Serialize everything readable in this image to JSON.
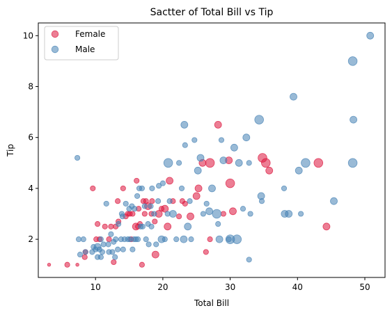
{
  "chart_data": {
    "type": "scatter",
    "title": "Sactter of Total Bill vs Tip",
    "xlabel": "Total Bill",
    "ylabel": "Tip",
    "xlim": [
      1.5,
      53
    ],
    "ylim": [
      0.5,
      10.5
    ],
    "xticks": [
      10,
      20,
      30,
      40,
      50
    ],
    "yticks": [
      2,
      4,
      6,
      8,
      10
    ],
    "grid": false,
    "legend": "top-left",
    "size_encoding": "party size",
    "series": [
      {
        "name": "Female",
        "color": "#dc143c",
        "points": [
          [
            3.1,
            1.0,
            1
          ],
          [
            5.8,
            1.0,
            2
          ],
          [
            7.3,
            1.0,
            1
          ],
          [
            8.4,
            1.3,
            2
          ],
          [
            8.5,
            1.5,
            2
          ],
          [
            9.6,
            4.0,
            2
          ],
          [
            10.1,
            2.0,
            2
          ],
          [
            10.3,
            2.6,
            2
          ],
          [
            10.6,
            2.0,
            2
          ],
          [
            11.4,
            2.5,
            2
          ],
          [
            12.0,
            2.0,
            2
          ],
          [
            12.3,
            2.5,
            2
          ],
          [
            12.7,
            1.1,
            2
          ],
          [
            13.0,
            2.5,
            2
          ],
          [
            13.3,
            3.5,
            2
          ],
          [
            13.4,
            2.7,
            2
          ],
          [
            14.1,
            4.0,
            2
          ],
          [
            14.5,
            2.9,
            2
          ],
          [
            14.8,
            3.0,
            2
          ],
          [
            15.1,
            3.0,
            2
          ],
          [
            15.3,
            2.0,
            2
          ],
          [
            15.5,
            3.0,
            2
          ],
          [
            16.0,
            2.5,
            3
          ],
          [
            16.1,
            4.3,
            2
          ],
          [
            16.3,
            2.5,
            2
          ],
          [
            16.4,
            3.2,
            2
          ],
          [
            16.6,
            2.6,
            2
          ],
          [
            16.9,
            1.0,
            2
          ],
          [
            17.1,
            3.5,
            2
          ],
          [
            17.3,
            3.0,
            2
          ],
          [
            17.5,
            3.5,
            2
          ],
          [
            17.8,
            3.3,
            3
          ],
          [
            18.3,
            3.0,
            2
          ],
          [
            18.4,
            3.5,
            2
          ],
          [
            18.8,
            2.7,
            2
          ],
          [
            18.9,
            1.4,
            3
          ],
          [
            19.4,
            3.0,
            3
          ],
          [
            19.8,
            3.2,
            2
          ],
          [
            20.3,
            3.2,
            3
          ],
          [
            20.7,
            2.5,
            3
          ],
          [
            21.0,
            4.3,
            3
          ],
          [
            21.5,
            3.5,
            2
          ],
          [
            22.4,
            2.9,
            2
          ],
          [
            22.9,
            3.5,
            2
          ],
          [
            23.3,
            3.4,
            2
          ],
          [
            24.1,
            2.9,
            3
          ],
          [
            25.0,
            3.7,
            3
          ],
          [
            25.3,
            4.0,
            3
          ],
          [
            25.9,
            5.0,
            3
          ],
          [
            26.4,
            1.5,
            2
          ],
          [
            27.0,
            5.0,
            4
          ],
          [
            27.0,
            2.0,
            2
          ],
          [
            28.2,
            6.5,
            3
          ],
          [
            29.0,
            3.0,
            2
          ],
          [
            29.8,
            5.1,
            3
          ],
          [
            30.0,
            4.2,
            4
          ],
          [
            30.4,
            3.1,
            3
          ],
          [
            34.8,
            5.2,
            4
          ],
          [
            35.3,
            5.0,
            4
          ],
          [
            35.8,
            4.7,
            3
          ],
          [
            43.1,
            5.0,
            4
          ],
          [
            44.3,
            2.5,
            3
          ]
        ]
      },
      {
        "name": "Male",
        "color": "#4682b4",
        "points": [
          [
            7.3,
            5.2,
            2
          ],
          [
            7.5,
            2.0,
            2
          ],
          [
            7.7,
            1.4,
            2
          ],
          [
            8.2,
            2.0,
            2
          ],
          [
            8.5,
            1.5,
            2
          ],
          [
            9.5,
            1.5,
            2
          ],
          [
            9.7,
            1.7,
            2
          ],
          [
            10.0,
            1.6,
            2
          ],
          [
            10.3,
            1.7,
            3
          ],
          [
            10.3,
            1.3,
            2
          ],
          [
            10.6,
            1.6,
            2
          ],
          [
            10.8,
            1.3,
            2
          ],
          [
            10.8,
            2.0,
            2
          ],
          [
            11.0,
            1.5,
            2
          ],
          [
            11.2,
            1.8,
            2
          ],
          [
            11.6,
            3.4,
            2
          ],
          [
            11.9,
            1.8,
            2
          ],
          [
            12.0,
            1.5,
            2
          ],
          [
            12.3,
            2.2,
            2
          ],
          [
            12.5,
            1.5,
            2
          ],
          [
            12.7,
            1.9,
            2
          ],
          [
            12.9,
            1.3,
            2
          ],
          [
            13.0,
            2.0,
            2
          ],
          [
            13.3,
            1.6,
            2
          ],
          [
            13.4,
            2.6,
            2
          ],
          [
            13.8,
            2.0,
            2
          ],
          [
            13.9,
            3.0,
            2
          ],
          [
            14.0,
            2.9,
            2
          ],
          [
            14.1,
            1.6,
            2
          ],
          [
            14.3,
            2.0,
            2
          ],
          [
            14.5,
            3.4,
            2
          ],
          [
            14.8,
            2.0,
            2
          ],
          [
            15.0,
            3.2,
            2
          ],
          [
            15.1,
            2.0,
            2
          ],
          [
            15.4,
            3.3,
            2
          ],
          [
            15.5,
            1.6,
            2
          ],
          [
            15.7,
            2.0,
            2
          ],
          [
            15.8,
            3.2,
            2
          ],
          [
            16.0,
            2.0,
            2
          ],
          [
            16.2,
            3.7,
            2
          ],
          [
            16.3,
            2.0,
            2
          ],
          [
            16.5,
            4.0,
            2
          ],
          [
            16.7,
            2.5,
            2
          ],
          [
            16.9,
            4.0,
            2
          ],
          [
            17.0,
            2.5,
            2
          ],
          [
            17.3,
            3.3,
            2
          ],
          [
            17.5,
            2.0,
            2
          ],
          [
            17.8,
            2.6,
            2
          ],
          [
            17.9,
            1.8,
            2
          ],
          [
            18.2,
            3.3,
            2
          ],
          [
            18.3,
            2.5,
            2
          ],
          [
            18.4,
            4.0,
            2
          ],
          [
            18.7,
            3.0,
            2
          ],
          [
            19.0,
            1.8,
            2
          ],
          [
            19.3,
            3.5,
            2
          ],
          [
            19.4,
            4.1,
            2
          ],
          [
            19.8,
            2.0,
            3
          ],
          [
            20.0,
            4.2,
            2
          ],
          [
            20.3,
            2.0,
            2
          ],
          [
            20.7,
            3.0,
            2
          ],
          [
            20.8,
            5.0,
            4
          ],
          [
            21.0,
            3.5,
            2
          ],
          [
            21.5,
            3.0,
            3
          ],
          [
            22.0,
            2.0,
            2
          ],
          [
            22.4,
            5.0,
            2
          ],
          [
            22.8,
            4.0,
            2
          ],
          [
            23.1,
            2.0,
            3
          ],
          [
            23.2,
            6.5,
            3
          ],
          [
            23.3,
            5.7,
            2
          ],
          [
            23.7,
            2.5,
            3
          ],
          [
            24.0,
            3.5,
            2
          ],
          [
            24.2,
            2.0,
            2
          ],
          [
            24.7,
            5.9,
            2
          ],
          [
            25.2,
            4.7,
            3
          ],
          [
            25.6,
            5.2,
            3
          ],
          [
            26.0,
            3.0,
            2
          ],
          [
            26.5,
            3.4,
            2
          ],
          [
            26.9,
            3.1,
            3
          ],
          [
            27.3,
            4.0,
            3
          ],
          [
            28.0,
            3.0,
            4
          ],
          [
            28.2,
            2.6,
            2
          ],
          [
            28.4,
            2.0,
            3
          ],
          [
            28.7,
            5.9,
            2
          ],
          [
            29.0,
            5.1,
            3
          ],
          [
            29.8,
            2.0,
            2
          ],
          [
            30.0,
            2.0,
            4
          ],
          [
            30.6,
            5.6,
            3
          ],
          [
            31.0,
            2.0,
            4
          ],
          [
            31.3,
            5.0,
            3
          ],
          [
            31.9,
            3.2,
            2
          ],
          [
            32.4,
            6.0,
            3
          ],
          [
            32.8,
            1.2,
            2
          ],
          [
            32.8,
            5.0,
            2
          ],
          [
            33.0,
            3.0,
            2
          ],
          [
            34.3,
            6.7,
            4
          ],
          [
            34.6,
            3.7,
            3
          ],
          [
            34.7,
            3.5,
            2
          ],
          [
            38.0,
            4.0,
            2
          ],
          [
            38.1,
            3.0,
            3
          ],
          [
            38.7,
            3.0,
            3
          ],
          [
            39.4,
            7.6,
            3
          ],
          [
            40.2,
            4.7,
            3
          ],
          [
            40.5,
            3.0,
            2
          ],
          [
            41.2,
            5.0,
            4
          ],
          [
            45.4,
            3.5,
            3
          ],
          [
            48.2,
            5.0,
            4
          ],
          [
            48.2,
            9.0,
            4
          ],
          [
            48.3,
            6.7,
            3
          ],
          [
            50.8,
            10.0,
            3
          ]
        ]
      }
    ]
  }
}
